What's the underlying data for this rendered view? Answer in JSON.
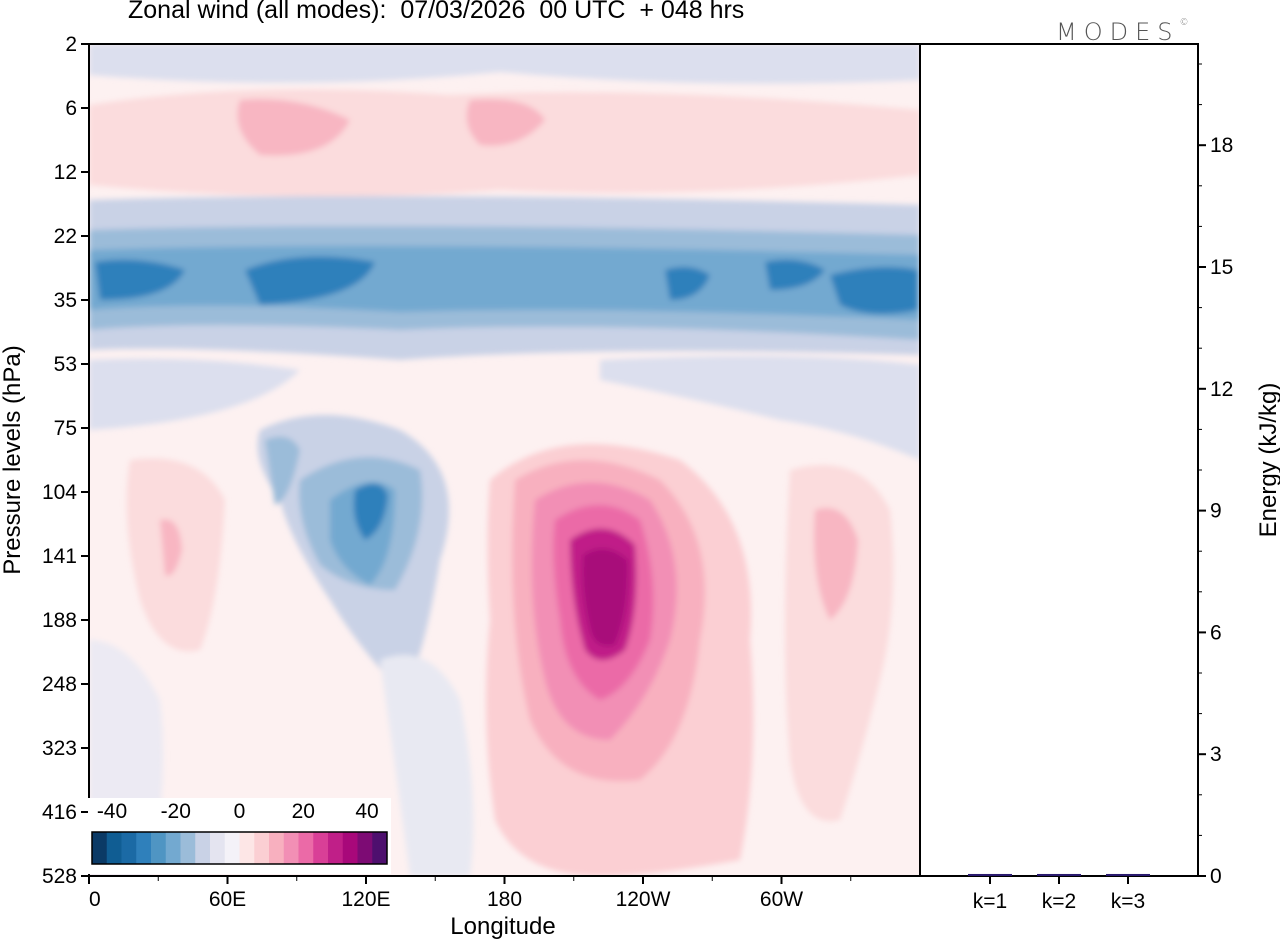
{
  "header": {
    "title": "Zonal wind (all modes):  07/03/2026  00 UTC  + 048 hrs",
    "logo": "MODES",
    "logo_mark": "©"
  },
  "colors": {
    "neg_strong": "#1b6aa5",
    "neg_mid": "#4f95c3",
    "neg_light": "#c9d2e6",
    "pos_light": "#fde6e6",
    "pos_mid": "#f28fb5",
    "pos_strong": "#a8087a"
  },
  "chart_data": [
    {
      "type": "heatmap",
      "title": "Zonal wind (all modes)",
      "xlabel": "Longitude",
      "ylabel": "Pressure levels (hPa)",
      "x_ticks": [
        "0",
        "60E",
        "120E",
        "180",
        "120W",
        "60W"
      ],
      "y_ticks": [
        "2",
        "6",
        "12",
        "22",
        "35",
        "53",
        "75",
        "104",
        "141",
        "188",
        "248",
        "323",
        "416",
        "528"
      ],
      "colorbar": {
        "tick_labels": [
          "-40",
          "-20",
          "0",
          "20",
          "40"
        ],
        "levels": [
          -45,
          -40,
          -35,
          -30,
          -25,
          -20,
          -15,
          -10,
          -5,
          0,
          5,
          10,
          15,
          20,
          25,
          30,
          35,
          40,
          45
        ],
        "colors": [
          "#0b3a66",
          "#105d93",
          "#1b6aa5",
          "#2f80bb",
          "#4f95c3",
          "#73a9d0",
          "#9bbcd9",
          "#c9d2e6",
          "#e4e4f0",
          "#f4f2f8",
          "#fde6e6",
          "#fbcfd3",
          "#f8b0bf",
          "#f28fb5",
          "#eb6aa7",
          "#d93f97",
          "#c01f88",
          "#a8087a",
          "#7d0b74",
          "#4e0f6e"
        ]
      },
      "features": [
        {
          "name": "negative jet band",
          "level_range": [
            22,
            53
          ],
          "value": -35
        },
        {
          "name": "negative maximum near 120E",
          "longitude": "125E",
          "level": 104,
          "value": -30
        },
        {
          "name": "positive maximum near 140W",
          "longitude": "140W",
          "level": 150,
          "value": 40
        }
      ]
    },
    {
      "type": "bar",
      "ylabel": "Energy (kJ/kg)",
      "categories": [
        "k=1",
        "k=2",
        "k=3"
      ],
      "values": [
        0.05,
        0.05,
        0.05
      ],
      "ylim": [
        0,
        20
      ],
      "y_ticks": [
        "0",
        "3",
        "6",
        "9",
        "12",
        "15",
        "18"
      ]
    }
  ]
}
